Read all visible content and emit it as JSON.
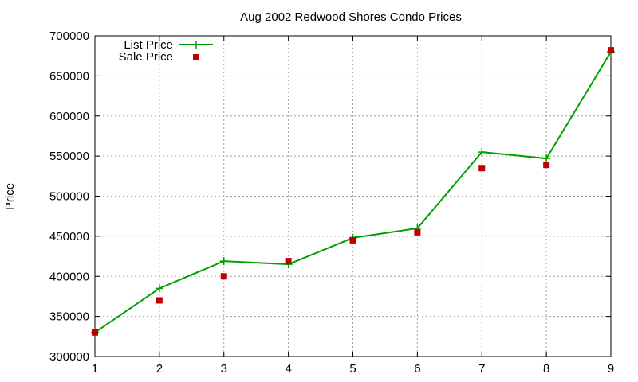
{
  "chart_data": {
    "type": "line",
    "title": "Aug 2002 Redwood Shores Condo Prices",
    "xlabel": "",
    "ylabel": "Price",
    "x": [
      1,
      2,
      3,
      4,
      5,
      6,
      7,
      8,
      9
    ],
    "xlim": [
      1,
      9
    ],
    "ylim": [
      300000,
      700000
    ],
    "xticks": [
      1,
      2,
      3,
      4,
      5,
      6,
      7,
      8,
      9
    ],
    "yticks": [
      300000,
      350000,
      400000,
      450000,
      500000,
      550000,
      600000,
      650000,
      700000
    ],
    "grid": true,
    "legend_position": "top-left",
    "series": [
      {
        "name": "List Price",
        "style": "line-with-plus-markers",
        "color": "#00a000",
        "values": [
          330000,
          385000,
          419000,
          415000,
          448000,
          460000,
          555000,
          547000,
          680000
        ]
      },
      {
        "name": "Sale Price",
        "style": "square-markers",
        "color": "#c00000",
        "values": [
          330000,
          370000,
          400000,
          419000,
          445000,
          455000,
          535000,
          539000,
          682000
        ]
      }
    ]
  }
}
